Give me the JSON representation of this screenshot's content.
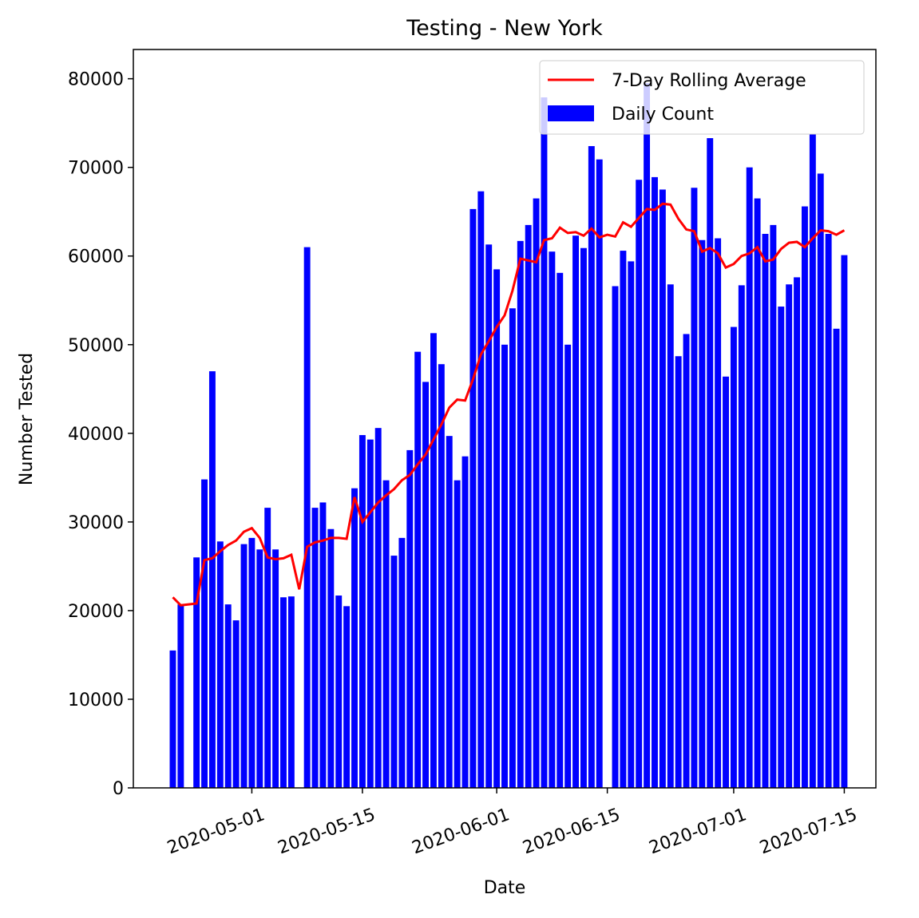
{
  "chart_data": {
    "type": "bar_line",
    "title": "Testing - New York",
    "x_label": "Date",
    "y_label": "Number Tested",
    "x": [
      "2020-04-21",
      "2020-04-22",
      "2020-04-23",
      "2020-04-24",
      "2020-04-25",
      "2020-04-26",
      "2020-04-27",
      "2020-04-28",
      "2020-04-29",
      "2020-04-30",
      "2020-05-01",
      "2020-05-02",
      "2020-05-03",
      "2020-05-04",
      "2020-05-05",
      "2020-05-06",
      "2020-05-07",
      "2020-05-08",
      "2020-05-09",
      "2020-05-10",
      "2020-05-11",
      "2020-05-12",
      "2020-05-13",
      "2020-05-14",
      "2020-05-15",
      "2020-05-16",
      "2020-05-17",
      "2020-05-18",
      "2020-05-19",
      "2020-05-20",
      "2020-05-21",
      "2020-05-22",
      "2020-05-23",
      "2020-05-24",
      "2020-05-25",
      "2020-05-26",
      "2020-05-27",
      "2020-05-28",
      "2020-05-29",
      "2020-05-30",
      "2020-05-31",
      "2020-06-01",
      "2020-06-02",
      "2020-06-03",
      "2020-06-04",
      "2020-06-05",
      "2020-06-06",
      "2020-06-07",
      "2020-06-08",
      "2020-06-09",
      "2020-06-10",
      "2020-06-11",
      "2020-06-12",
      "2020-06-13",
      "2020-06-14",
      "2020-06-15",
      "2020-06-16",
      "2020-06-17",
      "2020-06-18",
      "2020-06-19",
      "2020-06-20",
      "2020-06-21",
      "2020-06-22",
      "2020-06-23",
      "2020-06-24",
      "2020-06-25",
      "2020-06-26",
      "2020-06-27",
      "2020-06-28",
      "2020-06-29",
      "2020-06-30",
      "2020-07-01",
      "2020-07-02",
      "2020-07-03",
      "2020-07-04",
      "2020-07-05",
      "2020-07-06",
      "2020-07-07",
      "2020-07-08",
      "2020-07-09",
      "2020-07-10",
      "2020-07-11",
      "2020-07-12",
      "2020-07-13",
      "2020-07-14",
      "2020-07-15"
    ],
    "series": [
      {
        "name": "7-Day Rolling Average",
        "kind": "line",
        "color": "#ff0000",
        "values": [
          21500,
          20600,
          20700,
          20800,
          25700,
          25900,
          26700,
          27400,
          27900,
          28900,
          29300,
          28200,
          26000,
          25800,
          25900,
          26300,
          22400,
          27200,
          27700,
          27900,
          28200,
          28200,
          28100,
          32800,
          30000,
          31100,
          32200,
          33000,
          33700,
          34700,
          35300,
          36500,
          37600,
          39300,
          41000,
          42900,
          43800,
          43700,
          46100,
          48900,
          50400,
          52000,
          53300,
          56100,
          59700,
          59500,
          59300,
          61800,
          62000,
          63200,
          62600,
          62700,
          62300,
          63100,
          62100,
          62400,
          62200,
          63800,
          63300,
          64300,
          65300,
          65200,
          65900,
          65800,
          64200,
          63000,
          62800,
          60500,
          60900,
          60300,
          58700,
          59100,
          60000,
          60300,
          61000,
          59400,
          59600,
          60800,
          61500,
          61600,
          61000,
          62000,
          62900,
          62800,
          62400,
          62900
        ]
      },
      {
        "name": "Daily Count",
        "kind": "bar",
        "color": "#0000ff",
        "values": [
          15500,
          20700,
          null,
          26000,
          34800,
          47000,
          27800,
          20700,
          18900,
          27500,
          28200,
          26900,
          31600,
          26900,
          21500,
          21600,
          null,
          61000,
          31600,
          32200,
          29200,
          21700,
          20500,
          33800,
          39800,
          39300,
          40600,
          34700,
          26200,
          28200,
          38100,
          49200,
          45800,
          51300,
          47800,
          39700,
          34700,
          37400,
          65300,
          67300,
          61300,
          58500,
          50000,
          54100,
          61700,
          63500,
          66500,
          77900,
          60500,
          58100,
          50000,
          62300,
          60900,
          72400,
          70900,
          null,
          56600,
          60600,
          59400,
          68600,
          79500,
          68900,
          67500,
          56800,
          48700,
          51200,
          67700,
          61800,
          73300,
          62000,
          46400,
          52000,
          56700,
          70000,
          66500,
          62500,
          63500,
          54300,
          56800,
          57600,
          65600,
          73800,
          69300,
          62500,
          51800,
          60100
        ]
      }
    ],
    "xlim": [
      "2020-04-16",
      "2020-07-19"
    ],
    "xticks": [
      "2020-05-01",
      "2020-05-15",
      "2020-06-01",
      "2020-06-15",
      "2020-07-01",
      "2020-07-15"
    ],
    "ylim": [
      0,
      83300
    ],
    "yticks": [
      0,
      10000,
      20000,
      30000,
      40000,
      50000,
      60000,
      70000,
      80000
    ],
    "grid": false,
    "legend": "upper right"
  }
}
